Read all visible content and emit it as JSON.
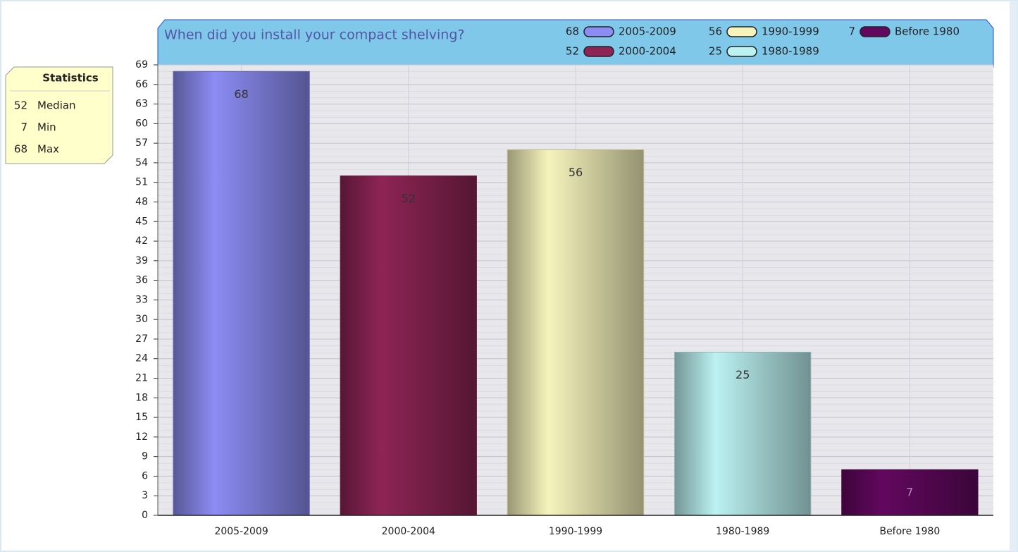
{
  "chart_data": {
    "type": "bar",
    "title": "When did you install your compact shelving?",
    "categories": [
      "2005-2009",
      "2000-2004",
      "1990-1999",
      "1980-1989",
      "Before 1980"
    ],
    "values": [
      68,
      52,
      56,
      25,
      7
    ],
    "colors": [
      "#8c8cf4",
      "#8e2455",
      "#f6f4bc",
      "#bcf2f2",
      "#62085f"
    ],
    "ylim": [
      0,
      69
    ],
    "yticks": [
      0,
      3,
      6,
      9,
      12,
      15,
      18,
      21,
      24,
      27,
      30,
      33,
      36,
      39,
      42,
      45,
      48,
      51,
      54,
      57,
      60,
      63,
      66,
      69
    ],
    "grid": true,
    "statistics": {
      "title": "Statistics",
      "items": [
        {
          "value": 52,
          "label": "Median"
        },
        {
          "value": 7,
          "label": "Min"
        },
        {
          "value": 68,
          "label": "Max"
        }
      ]
    }
  }
}
